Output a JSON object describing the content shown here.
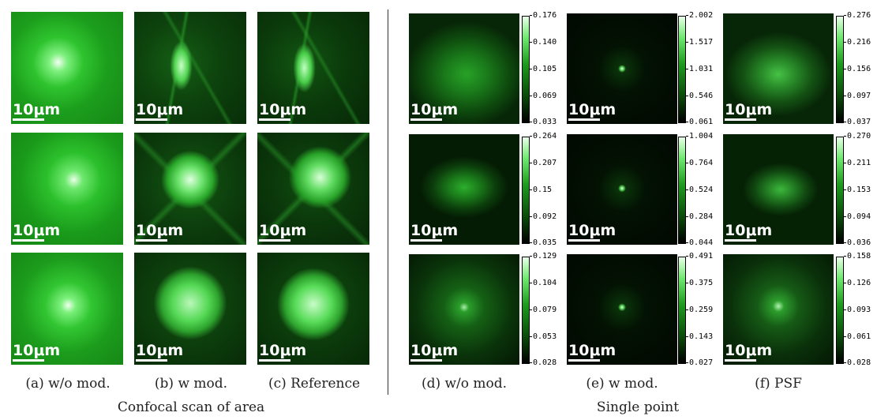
{
  "scale_label": "10μm",
  "left_group": {
    "title": "Confocal scan of area",
    "columns": [
      {
        "caption": "(a) w/o mod."
      },
      {
        "caption": "(b) w mod."
      },
      {
        "caption": "(c) Reference"
      }
    ]
  },
  "right_group": {
    "title": "Single point",
    "columns": [
      {
        "caption": "(d) w/o mod."
      },
      {
        "caption": "(e) w mod."
      },
      {
        "caption": "(f) PSF"
      }
    ]
  },
  "colorbars": {
    "d": [
      [
        "0.176",
        "0.140",
        "0.105",
        "0.069",
        "0.033"
      ],
      [
        "0.264",
        "0.207",
        "0.15",
        "0.092",
        "0.035"
      ],
      [
        "0.129",
        "0.104",
        "0.079",
        "0.053",
        "0.028"
      ]
    ],
    "e": [
      [
        "2.002",
        "1.517",
        "1.031",
        "0.546",
        "0.061"
      ],
      [
        "1.004",
        "0.764",
        "0.524",
        "0.284",
        "0.044"
      ],
      [
        "0.491",
        "0.375",
        "0.259",
        "0.143",
        "0.027"
      ]
    ],
    "f": [
      [
        "0.276",
        "0.216",
        "0.156",
        "0.097",
        "0.037"
      ],
      [
        "0.270",
        "0.211",
        "0.153",
        "0.094",
        "0.036"
      ],
      [
        "0.158",
        "0.126",
        "0.093",
        "0.061",
        "0.028"
      ]
    ]
  },
  "colors": {
    "colormap_low": "#000000",
    "colormap_mid": "#1e9a1e",
    "colormap_high": "#eaffea"
  }
}
